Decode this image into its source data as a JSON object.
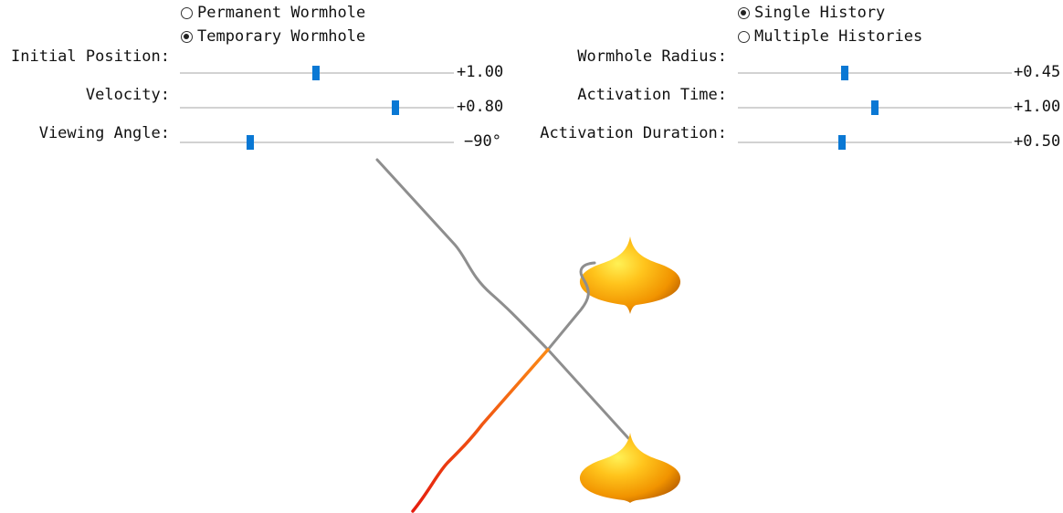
{
  "left_controls": {
    "wormhole_type": [
      {
        "label": "Permanent Wormhole",
        "selected": false
      },
      {
        "label": "Temporary Wormhole",
        "selected": true
      }
    ],
    "sliders": [
      {
        "label": "Initial Position:",
        "value_text": "+1.00",
        "fraction": 0.495
      },
      {
        "label": "Velocity:",
        "value_text": "+0.80",
        "fraction": 0.785
      },
      {
        "label": "Viewing Angle:",
        "value_text": "−90°",
        "fraction": 0.255
      }
    ]
  },
  "right_controls": {
    "history_mode": [
      {
        "label": "Single History",
        "selected": true
      },
      {
        "label": "Multiple Histories",
        "selected": false
      }
    ],
    "sliders": [
      {
        "label": "Wormhole Radius:",
        "value_text": "+0.45",
        "fraction": 0.39
      },
      {
        "label": "Activation Time:",
        "value_text": "+1.00",
        "fraction": 0.5
      },
      {
        "label": "Activation Duration:",
        "value_text": "+0.50",
        "fraction": 0.38
      }
    ]
  },
  "visualization": {
    "worldline_color": "#8e8e8e",
    "highlight_start_color": "#e51d0f",
    "highlight_end_color": "#fb8a16",
    "wormhole_colors": [
      "#fff155",
      "#ffc41c",
      "#f19300",
      "#b65d00"
    ]
  }
}
